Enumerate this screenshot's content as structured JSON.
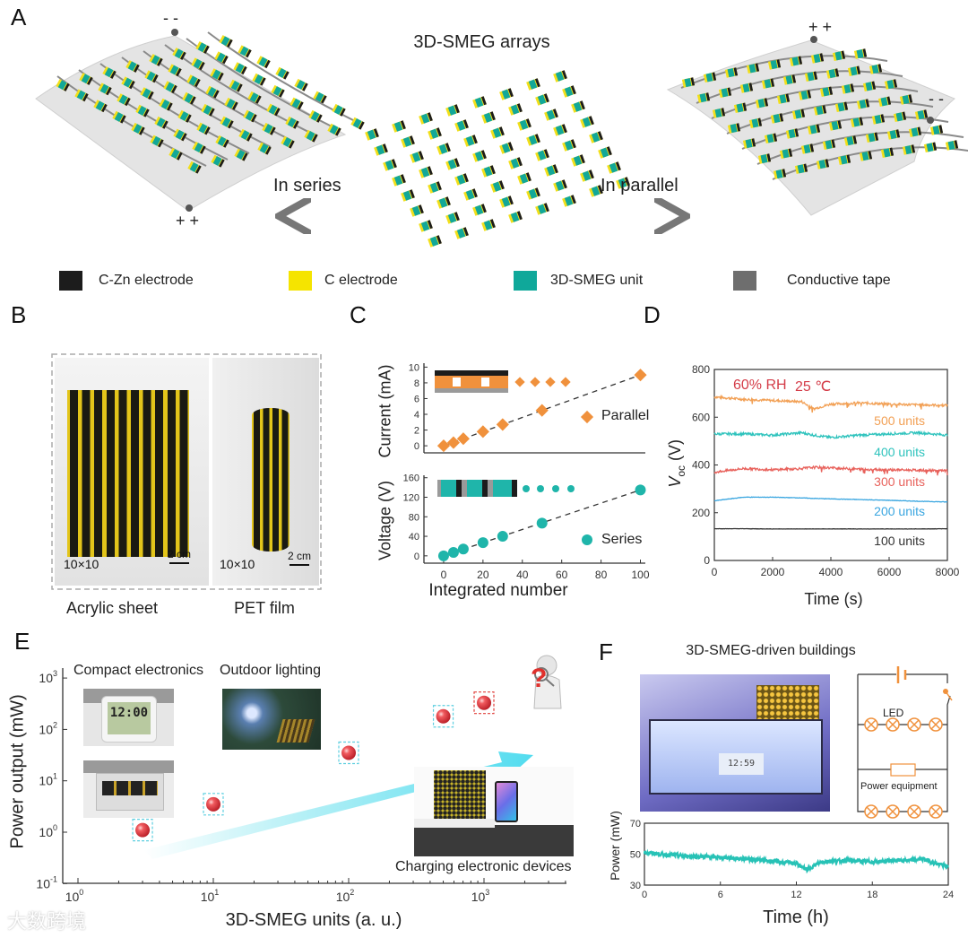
{
  "panel_labels": {
    "a": "A",
    "b": "B",
    "c": "C",
    "d": "D",
    "e": "E",
    "f": "F"
  },
  "panel_a": {
    "title": "3D-SMEG arrays",
    "series_label": "In series",
    "parallel_label": "In parallel",
    "left_minus": "- -",
    "left_plus": "+ +",
    "right_plus": "+ +",
    "right_minus": "- -",
    "legend": [
      {
        "label": "C-Zn electrode",
        "color": "#1c1c1c"
      },
      {
        "label": "C electrode",
        "color": "#f5e400"
      },
      {
        "label": "3D-SMEG unit",
        "color": "#0fa89a"
      },
      {
        "label": "Conductive tape",
        "color": "#6e6e6e"
      }
    ]
  },
  "panel_b": {
    "left_count": "10×10",
    "right_count": "10×10",
    "left_scale": "2 cm",
    "right_scale": "2 cm",
    "left_caption": "Acrylic sheet",
    "right_caption": "PET film"
  },
  "panel_e": {
    "captions": {
      "compact": "Compact electronics",
      "outdoor": "Outdoor lighting",
      "charging": "Charging electronic devices",
      "unknown": "?"
    },
    "watermark": "大数跨境"
  },
  "panel_f": {
    "title": "3D-SMEG-driven buildings",
    "circuit_led": "LED",
    "circuit_equipment": "Power equipment"
  },
  "chart_data": [
    {
      "id": "c_parallel",
      "type": "scatter",
      "xlabel": "",
      "ylabel": "Current (mA)",
      "x": [
        0,
        5,
        10,
        20,
        30,
        50,
        100
      ],
      "y": [
        0,
        0.4,
        0.9,
        1.8,
        2.7,
        4.5,
        9.0
      ],
      "xlim": [
        -10,
        102.5
      ],
      "ylim": [
        -0.9,
        10.5
      ],
      "yticks": [
        0,
        2,
        4,
        6,
        8,
        10
      ],
      "legend": "Parallel",
      "color": "#f0913c",
      "marker": "diamond",
      "fit": "dashed-linear"
    },
    {
      "id": "c_series",
      "type": "scatter",
      "xlabel": "Integrated number",
      "ylabel": "Voltage (V)",
      "x": [
        0,
        5,
        10,
        20,
        30,
        50,
        100
      ],
      "y": [
        0,
        7,
        14,
        27,
        40,
        67,
        135
      ],
      "xlim": [
        -10,
        102.5
      ],
      "ylim": [
        -15,
        165
      ],
      "xticks": [
        0,
        20,
        40,
        60,
        80,
        100
      ],
      "yticks": [
        0,
        40,
        80,
        120,
        160
      ],
      "legend": "Series",
      "color": "#1fb5aa",
      "marker": "circle",
      "fit": "dashed-linear"
    },
    {
      "id": "d_voc",
      "type": "line",
      "xlabel": "Time (s)",
      "ylabel": "V",
      "ylabel_sub": "oc",
      "ylabel_unit": " (V)",
      "xlim": [
        0,
        8000
      ],
      "ylim": [
        0,
        800
      ],
      "xticks": [
        0,
        2000,
        4000,
        6000,
        8000
      ],
      "yticks": [
        0,
        200,
        400,
        600,
        800
      ],
      "annotation_rh": "60% RH",
      "annotation_temp": "25 ℃",
      "annotation_color": "#d43c48",
      "x": [
        0,
        1000,
        2000,
        3000,
        3400,
        4000,
        5000,
        6000,
        7000,
        8000
      ],
      "series": [
        {
          "name": "500 units",
          "color": "#f2a055",
          "values": [
            685,
            675,
            670,
            665,
            635,
            655,
            660,
            655,
            652,
            650
          ]
        },
        {
          "name": "400 units",
          "color": "#2fc3bd",
          "values": [
            530,
            530,
            525,
            535,
            525,
            515,
            525,
            530,
            535,
            525
          ]
        },
        {
          "name": "300 units",
          "color": "#e8625c",
          "values": [
            370,
            385,
            380,
            385,
            390,
            388,
            382,
            380,
            378,
            375
          ]
        },
        {
          "name": "200 units",
          "color": "#3aa6e0",
          "values": [
            250,
            265,
            265,
            262,
            260,
            258,
            255,
            252,
            248,
            245
          ]
        },
        {
          "name": "100 units",
          "color": "#333333",
          "values": [
            133,
            133,
            132,
            132,
            132,
            132,
            132,
            132,
            132,
            133
          ]
        }
      ]
    },
    {
      "id": "e_power",
      "type": "scatter",
      "xlabel": "3D-SMEG units (a. u.)",
      "ylabel": "Power output (mW)",
      "xscale": "log",
      "yscale": "log",
      "x": [
        3,
        10,
        100,
        500,
        1000
      ],
      "y": [
        1.1,
        3.5,
        35,
        180,
        330
      ],
      "xlim": [
        0.8,
        4000
      ],
      "ylim": [
        0.1,
        1500
      ],
      "xticks": [
        "10^0",
        "10^1",
        "10^2",
        "10^3"
      ],
      "yticks": [
        "10^-1",
        "10^0",
        "10^1",
        "10^2",
        "10^3"
      ],
      "marker_color": "#e8434a",
      "box_color": "#5fcfe0",
      "last_box_color": "#e0403c"
    },
    {
      "id": "f_power",
      "type": "line",
      "xlabel": "Time (h)",
      "ylabel": "Power (mW)",
      "xlim": [
        0,
        24
      ],
      "ylim": [
        30,
        70
      ],
      "xticks": [
        0,
        6,
        12,
        18,
        24
      ],
      "yticks": [
        30,
        50,
        70
      ],
      "color": "#27c2b6",
      "x": [
        0,
        2,
        4,
        6,
        8,
        10,
        12,
        12.8,
        14,
        16,
        18,
        20,
        21,
        22,
        23,
        24
      ],
      "y": [
        51,
        49.5,
        48.5,
        48,
        47,
        45.5,
        44,
        40,
        45,
        46,
        45,
        46,
        46,
        47,
        44,
        42
      ]
    }
  ]
}
